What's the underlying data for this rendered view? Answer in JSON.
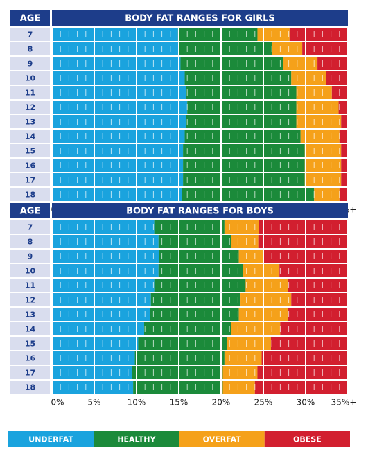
{
  "chart_data": [
    {
      "type": "stacked_bar",
      "title": "BODY FAT RANGES FOR GIRLS",
      "age_label": "AGE",
      "categories": [
        "7",
        "8",
        "9",
        "10",
        "11",
        "12",
        "13",
        "14",
        "15",
        "16",
        "17",
        "18"
      ],
      "series": [
        {
          "name": "UNDERFAT",
          "color": "#1aa3de",
          "values": [
            14.9,
            15.0,
            15.2,
            15.7,
            15.9,
            16.0,
            15.9,
            15.7,
            15.5,
            15.5,
            15.5,
            15.4
          ]
        },
        {
          "name": "HEALTHY",
          "color": "#1b8a3a",
          "values": [
            9.4,
            11.0,
            12.1,
            12.6,
            13.0,
            12.9,
            13.0,
            13.7,
            14.4,
            14.4,
            14.4,
            15.6
          ]
        },
        {
          "name": "OVERFAT",
          "color": "#f5a11a",
          "values": [
            3.8,
            3.6,
            4.1,
            4.1,
            4.2,
            5.0,
            5.3,
            4.6,
            4.3,
            4.3,
            4.3,
            3.0
          ]
        },
        {
          "name": "OBESE",
          "color": "#d21f2f",
          "values": [
            6.9,
            5.4,
            3.6,
            2.6,
            1.9,
            1.1,
            0.8,
            1.0,
            0.8,
            0.8,
            0.8,
            1.0
          ]
        }
      ],
      "xlim": [
        0,
        35
      ],
      "xticks": [
        {
          "value": 0,
          "label": "0%"
        },
        {
          "value": 5,
          "label": "5%"
        },
        {
          "value": 10,
          "label": "10%"
        },
        {
          "value": 15,
          "label": "15%"
        },
        {
          "value": 20,
          "label": "20%"
        },
        {
          "value": 25,
          "label": "25%"
        },
        {
          "value": 30,
          "label": "30%"
        },
        {
          "value": 35,
          "label": "35%+"
        }
      ],
      "grid": true
    },
    {
      "type": "stacked_bar",
      "title": "BODY FAT RANGES FOR BOYS",
      "age_label": "AGE",
      "categories": [
        "7",
        "8",
        "9",
        "10",
        "11",
        "12",
        "13",
        "14",
        "15",
        "16",
        "17",
        "18"
      ],
      "series": [
        {
          "color": "#1aa3de",
          "values": [
            12.1,
            12.6,
            12.7,
            12.6,
            12.1,
            11.7,
            11.6,
            10.9,
            10.2,
            9.8,
            9.5,
            9.6
          ]
        },
        {
          "color": "#1b8a3a",
          "values": [
            8.3,
            8.6,
            9.4,
            10.0,
            10.8,
            10.6,
            10.5,
            10.3,
            10.5,
            10.6,
            10.7,
            10.6
          ]
        },
        {
          "color": "#f5a11a",
          "values": [
            4.1,
            3.2,
            2.9,
            4.3,
            5.0,
            6.0,
            5.8,
            5.8,
            5.2,
            4.4,
            4.1,
            3.8
          ]
        },
        {
          "color": "#d21f2f",
          "values": [
            10.5,
            10.6,
            10.0,
            8.1,
            7.1,
            6.7,
            7.1,
            8.0,
            9.1,
            10.2,
            10.7,
            11.0
          ]
        }
      ],
      "xlim": [
        0,
        35
      ],
      "xticks": [
        {
          "value": 0,
          "label": "0%"
        },
        {
          "value": 5,
          "label": "5%"
        },
        {
          "value": 10,
          "label": "10%"
        },
        {
          "value": 15,
          "label": "15%"
        },
        {
          "value": 20,
          "label": "20%"
        },
        {
          "value": 25,
          "label": "25%"
        },
        {
          "value": 30,
          "label": "30%"
        },
        {
          "value": 35,
          "label": "35%+"
        }
      ],
      "grid": true
    }
  ]
}
